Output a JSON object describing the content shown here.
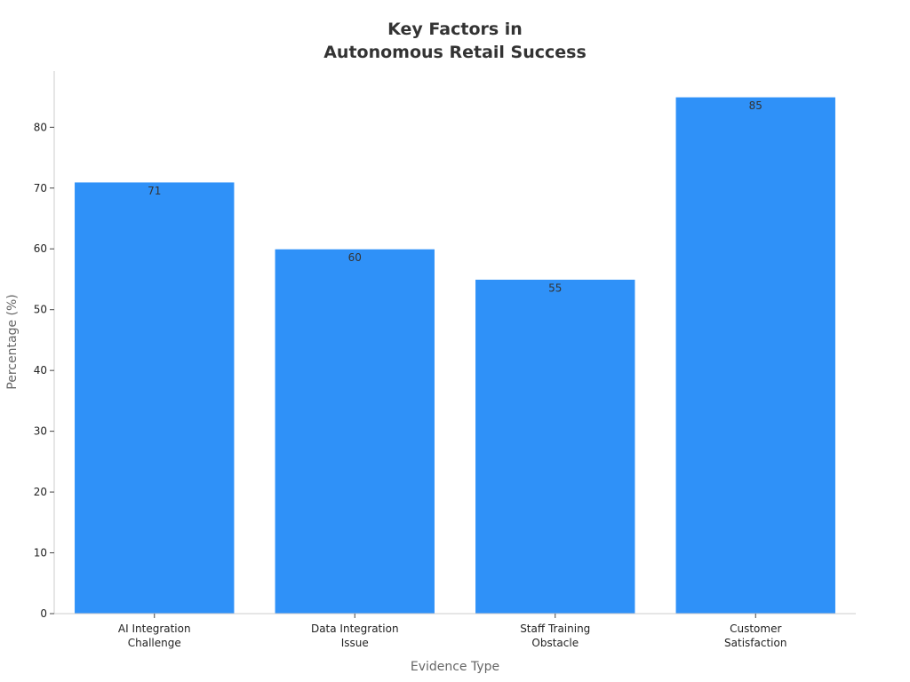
{
  "chart_data": {
    "type": "bar",
    "title_lines": [
      "Key Factors in",
      "Autonomous Retail Success"
    ],
    "categories": [
      [
        "AI Integration",
        "Challenge"
      ],
      [
        "Data Integration",
        "Issue"
      ],
      [
        "Staff Training",
        "Obstacle"
      ],
      [
        "Customer",
        "Satisfaction"
      ]
    ],
    "values": [
      71,
      60,
      55,
      85
    ],
    "data_labels": [
      "71",
      "60",
      "55",
      "85"
    ],
    "xlabel": "Evidence Type",
    "ylabel": "Percentage (%)",
    "ylim": [
      0,
      89.25
    ],
    "yticks": [
      0,
      10,
      20,
      30,
      40,
      50,
      60,
      70,
      80
    ],
    "grid": false,
    "bar_color": "#2f91f8",
    "axis_color": "#cccccc"
  }
}
